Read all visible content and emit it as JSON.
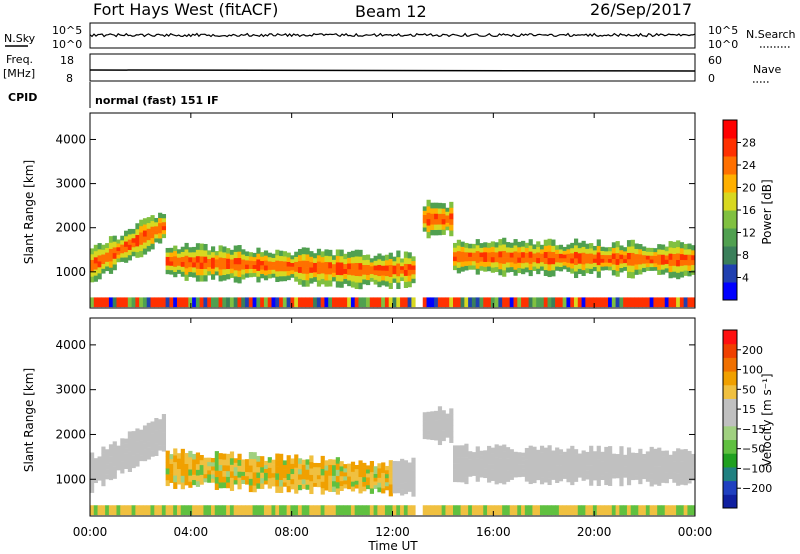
{
  "header": {
    "station": "Fort Hays West (fitACF)",
    "beam": "Beam 12",
    "date": "26/Sep/2017"
  },
  "top_panels": {
    "nsky_label": "N.Sky",
    "nsky_ticks": [
      "10^5",
      "10^0"
    ],
    "nsearch_label": "N.Search",
    "nsearch_ticks": [
      "10^5",
      "10^0"
    ],
    "freq_label": "Freq.",
    "freq_unit": "[MHz]",
    "freq_ticks": [
      "18",
      "8"
    ],
    "nave_label": "Nave",
    "nave_ticks": [
      "60",
      "0"
    ],
    "cpid_label": "CPID",
    "cpid_value": "normal (fast) 151 IF"
  },
  "chart_data": [
    {
      "type": "heatmap",
      "name": "power",
      "ylabel": "Slant Range [km]",
      "y_ticks": [
        "4000",
        "3000",
        "2000",
        "1000"
      ],
      "ylim": [
        180,
        4600
      ],
      "colorbar_label": "Power [dB]",
      "colorbar_ticks": [
        "28",
        "24",
        "20",
        "16",
        "12",
        "8",
        "4"
      ],
      "colorbar_colors": [
        "#0000ff",
        "#2040b0",
        "#3a7f5a",
        "#50a050",
        "#80c040",
        "#d8d820",
        "#ffb000",
        "#ff7000",
        "#ff3000",
        "#ff0000"
      ],
      "range": [
        0,
        30
      ]
    },
    {
      "type": "heatmap",
      "name": "velocity",
      "ylabel": "Slant Range [km]",
      "y_ticks": [
        "4000",
        "3000",
        "2000",
        "1000"
      ],
      "ylim": [
        180,
        4600
      ],
      "colorbar_label": "Velocity [m s⁻¹]",
      "colorbar_ticks": [
        "200",
        "100",
        "50",
        "15",
        "−15",
        "−50",
        "−100",
        "−200"
      ],
      "colorbar_colors": [
        "#1020a0",
        "#2040c0",
        "#208080",
        "#20a020",
        "#60c040",
        "#a0d080",
        "#c0c0c0",
        "#c0c0c0",
        "#f0c040",
        "#f0a000",
        "#f07000",
        "#f04000",
        "#ff1010"
      ],
      "range": [
        -250,
        250
      ]
    }
  ],
  "xaxis": {
    "label": "Time UT",
    "ticks": [
      "00:00",
      "04:00",
      "08:00",
      "12:00",
      "16:00",
      "20:00",
      "00:00"
    ]
  }
}
